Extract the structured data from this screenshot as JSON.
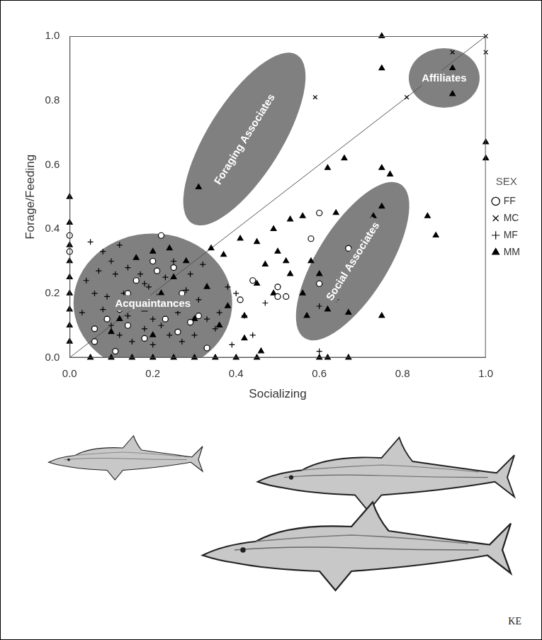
{
  "chart_data": {
    "type": "scatter",
    "x_label": "Socializing",
    "y_label": "Forage/Feeding",
    "xlim": [
      0,
      1
    ],
    "ylim": [
      0,
      1
    ],
    "xticks": [
      {
        "value": 0,
        "label": "0.0"
      },
      0.2,
      0.4,
      0.6,
      0.8,
      {
        "value": 1,
        "label": "1.0"
      }
    ],
    "yticks": [
      {
        "value": 0,
        "label": "0.0"
      },
      0.2,
      0.4,
      0.6,
      0.8,
      {
        "value": 1,
        "label": "1.0"
      }
    ],
    "grid": false,
    "legend": "right",
    "legend_title": "SEX",
    "series": [
      {
        "name": "FF",
        "color": "#000000",
        "marker": "circle_open",
        "x": [
          0,
          0,
          0.22,
          0.2,
          0.25,
          0.16,
          0.14,
          0.18,
          0.23,
          0.29,
          0.31,
          0.26,
          0.12,
          0.09,
          0.06,
          0.41,
          0.44,
          0.5,
          0.5,
          0.52,
          0.58,
          0.6,
          0.67,
          0.6,
          0.06,
          0.11,
          0.18,
          0.21,
          0.27,
          0.33,
          0.14,
          0.24
        ],
        "values": [
          0.38,
          0.33,
          0.38,
          0.3,
          0.28,
          0.24,
          0.2,
          0.18,
          0.12,
          0.11,
          0.13,
          0.08,
          0.15,
          0.12,
          0.09,
          0.18,
          0.24,
          0.22,
          0.19,
          0.19,
          0.37,
          0.45,
          0.34,
          0.23,
          0.05,
          0.02,
          0.06,
          0.27,
          0.2,
          0.03,
          0.1,
          0.16
        ]
      },
      {
        "name": "MC",
        "color": "#000000",
        "marker": "x",
        "x": [
          0.59,
          0.81,
          0.92,
          1.0,
          0.95,
          1.0
        ],
        "values": [
          0.81,
          0.81,
          0.95,
          1.0,
          0.87,
          0.95
        ]
      },
      {
        "name": "MF",
        "color": "#000000",
        "marker": "plus",
        "x": [
          0.05,
          0.08,
          0.1,
          0.12,
          0.14,
          0.17,
          0.19,
          0.21,
          0.23,
          0.26,
          0.28,
          0.31,
          0.33,
          0.35,
          0.39,
          0.44,
          0.47,
          0.42,
          0.06,
          0.08,
          0.1,
          0.12,
          0.15,
          0.18,
          0.2,
          0.22,
          0.24,
          0.27,
          0.04,
          0.07,
          0.13,
          0.16,
          0.18,
          0.25,
          0.29,
          0.32,
          0.38,
          0.4,
          0.6,
          0.64,
          0.67,
          0.6,
          0.11,
          0.09,
          0.14,
          0.2,
          0.23,
          0.03,
          0.36,
          0.3
        ],
        "values": [
          0.36,
          0.33,
          0.3,
          0.35,
          0.28,
          0.26,
          0.22,
          0.19,
          0.16,
          0.14,
          0.21,
          0.18,
          0.12,
          0.09,
          0.04,
          0.07,
          0.17,
          0.13,
          0.2,
          0.15,
          0.1,
          0.07,
          0.05,
          0.09,
          0.04,
          0.1,
          0.07,
          0.05,
          0.24,
          0.27,
          0.2,
          0.17,
          0.23,
          0.3,
          0.26,
          0.29,
          0.22,
          0.2,
          0.16,
          0.18,
          0.25,
          0.02,
          0.26,
          0.19,
          0.13,
          0.12,
          0.25,
          0.14,
          0.14,
          0.07
        ]
      },
      {
        "name": "MM",
        "color": "#000000",
        "marker": "triangle",
        "x": [
          0.75,
          0.75,
          0.92,
          0.92,
          1.0,
          1.0,
          0.38,
          0.31,
          0.62,
          0.75,
          0.77,
          0.66,
          0.75,
          0.86,
          0.88,
          0.73,
          0.64,
          0.56,
          0.53,
          0.49,
          0.45,
          0.41,
          0.37,
          0.34,
          0.5,
          0.52,
          0.47,
          0.58,
          0.6,
          0.53,
          0.45,
          0.49,
          0.56,
          0.62,
          0.67,
          0.75,
          0.57,
          0.42,
          0.38,
          0.33,
          0.28,
          0.24,
          0.2,
          0.16,
          0.25,
          0.22,
          0.18,
          0.12,
          0.3,
          0.36,
          0.42,
          0.46,
          0.6,
          0.62,
          0.67,
          0.1,
          0.2,
          0,
          0,
          0,
          0,
          0,
          0,
          0,
          0,
          0,
          0.05,
          0.1,
          0.15,
          0.2,
          0.25,
          0.3,
          0.35,
          0.4,
          0.45
        ],
        "values": [
          1.0,
          0.9,
          0.9,
          0.82,
          0.67,
          0.62,
          0.59,
          0.53,
          0.59,
          0.59,
          0.57,
          0.62,
          0.47,
          0.44,
          0.38,
          0.44,
          0.45,
          0.44,
          0.43,
          0.4,
          0.36,
          0.37,
          0.32,
          0.34,
          0.33,
          0.3,
          0.29,
          0.3,
          0.26,
          0.26,
          0.23,
          0.2,
          0.2,
          0.15,
          0.14,
          0.13,
          0.13,
          0.13,
          0.16,
          0.22,
          0.3,
          0.34,
          0.33,
          0.31,
          0.25,
          0.2,
          0.15,
          0.12,
          0.12,
          0.1,
          0.06,
          0.02,
          0,
          0,
          0,
          0.08,
          0.07,
          0.5,
          0.42,
          0.35,
          0.3,
          0.25,
          0.2,
          0.15,
          0.1,
          0.05,
          0,
          0,
          0,
          0,
          0,
          0,
          0,
          0,
          0
        ]
      }
    ],
    "reference_line": {
      "x": [
        0,
        1
      ],
      "values": [
        0,
        1
      ]
    },
    "annotations": [
      {
        "text": "Acquaintances",
        "x": 0.2,
        "y": 0.17
      },
      {
        "text": "Foraging Associates",
        "x": 0.42,
        "y": 0.68
      },
      {
        "text": "Social Associates",
        "x": 0.68,
        "y": 0.3
      },
      {
        "text": "Affiliates",
        "x": 0.9,
        "y": 0.87
      }
    ],
    "signature": "KE"
  }
}
